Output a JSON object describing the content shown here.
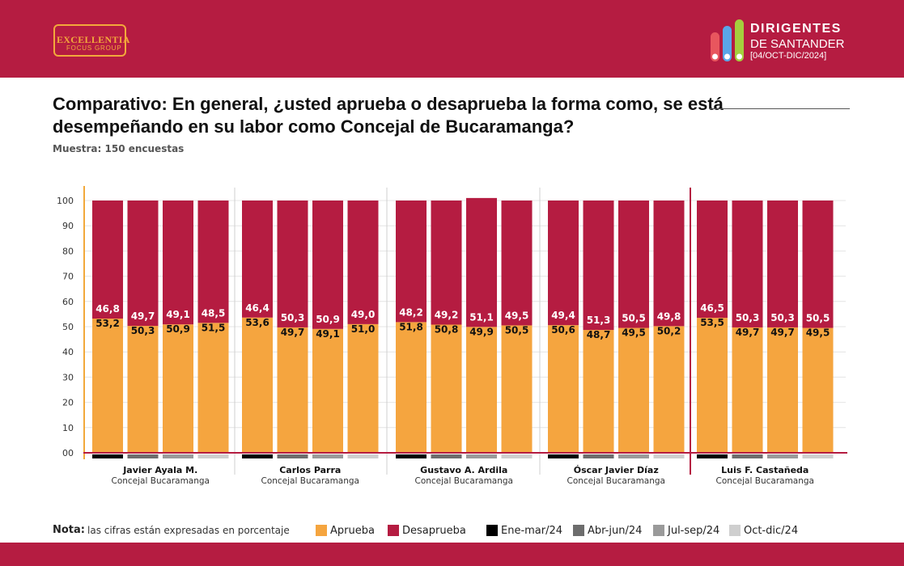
{
  "header": {
    "logo_left": {
      "line1": "EXCELLENTIA",
      "line2": "FOCUS GROUP"
    },
    "logo_right": {
      "line1": "DIRIGENTES",
      "line2": "DE SANTANDER",
      "line3": "[04/OCT-DIC/2024]"
    }
  },
  "title": "Comparativo: En general, ¿usted aprueba o desaprueba la forma como, se está desempeñando en su labor como Concejal de Bucaramanga?",
  "sample": "Muestra: 150 encuestas",
  "chart_data": {
    "type": "bar",
    "stacked": true,
    "ylim": [
      0,
      100
    ],
    "y_ticks": [
      "00",
      "10",
      "20",
      "30",
      "40",
      "50",
      "60",
      "70",
      "80",
      "90",
      "100"
    ],
    "periods": [
      "Ene-mar/24",
      "Abr-jun/24",
      "Jul-sep/24",
      "Oct-dic/24"
    ],
    "groups": [
      {
        "name": "Javier Ayala M.",
        "role": "Concejal Bucaramanga",
        "aprueba": [
          "53,2",
          "50,3",
          "50,9",
          "51,5"
        ],
        "desaprueba": [
          "46,8",
          "49,7",
          "49,1",
          "48,5"
        ]
      },
      {
        "name": "Carlos Parra",
        "role": "Concejal Bucaramanga",
        "aprueba": [
          "53,6",
          "49,7",
          "49,1",
          "51,0"
        ],
        "desaprueba": [
          "46,4",
          "50,3",
          "50,9",
          "49,0"
        ]
      },
      {
        "name": "Gustavo A. Ardila",
        "role": "Concejal Bucaramanga",
        "aprueba": [
          "51,8",
          "50,8",
          "49,9",
          "50,5"
        ],
        "desaprueba": [
          "48,2",
          "49,2",
          "51,1",
          "49,5"
        ]
      },
      {
        "name": "Óscar Javier Díaz",
        "role": "Concejal Bucaramanga",
        "aprueba": [
          "50,6",
          "48,7",
          "49,5",
          "50,2"
        ],
        "desaprueba": [
          "49,4",
          "51,3",
          "50,5",
          "49,8"
        ]
      },
      {
        "name": "Luis F. Castañeda",
        "role": "Concejal Bucaramanga",
        "aprueba": [
          "53,5",
          "49,7",
          "49,7",
          "49,5"
        ],
        "desaprueba": [
          "46,5",
          "50,3",
          "50,3",
          "50,5"
        ]
      }
    ],
    "series": [
      {
        "name": "Aprueba",
        "color": "#f5a53f"
      },
      {
        "name": "Desaprueba",
        "color": "#b51c41"
      }
    ],
    "period_colors": [
      "#000000",
      "#6d6d6d",
      "#9a9a9a",
      "#cfcfcf"
    ]
  },
  "legend": {
    "note_label": "Nota:",
    "note_text": "las cifras están expresadas en porcentaje",
    "items": [
      "Aprueba",
      "Desaprueba",
      "Ene-mar/24",
      "Abr-jun/24",
      "Jul-sep/24",
      "Oct-dic/24"
    ]
  }
}
